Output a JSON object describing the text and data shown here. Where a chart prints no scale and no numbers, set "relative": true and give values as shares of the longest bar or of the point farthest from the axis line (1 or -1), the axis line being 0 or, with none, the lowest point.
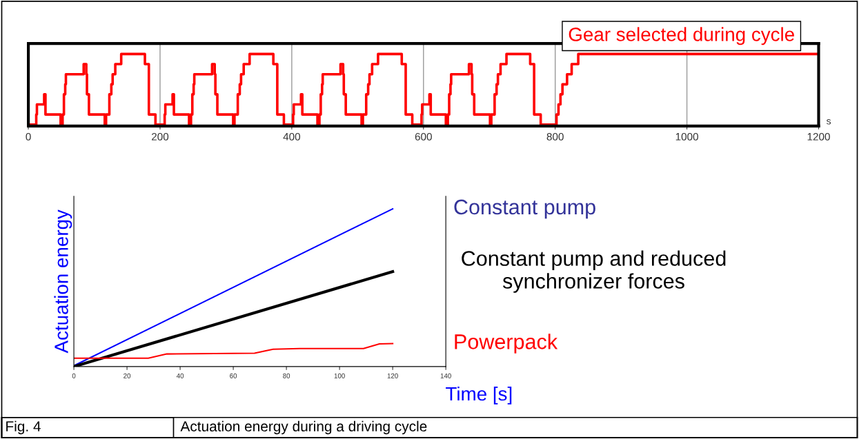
{
  "chart_data": [
    {
      "type": "step",
      "title": "Gear selected during cycle",
      "xlabel": "s",
      "relative": true,
      "xlim": [
        0,
        1200
      ],
      "xticks": [
        0,
        200,
        400,
        600,
        800,
        1000,
        1200
      ],
      "grid": "x",
      "legend": false,
      "tick_labels": "x",
      "marker": "none",
      "line_style": "solid",
      "series": [
        {
          "color": "#ff0000",
          "x": [
            0,
            12,
            13,
            24,
            26,
            49,
            52,
            54,
            56,
            57,
            84,
            88,
            89,
            92,
            116,
            118,
            123,
            126,
            128,
            132,
            141,
            177,
            183,
            193,
            207,
            208,
            219,
            221,
            244,
            247,
            249,
            251,
            252,
            279,
            283,
            284,
            287,
            311,
            313,
            318,
            321,
            323,
            327,
            336,
            372,
            378,
            388,
            402,
            403,
            414,
            416,
            439,
            442,
            444,
            446,
            447,
            474,
            478,
            479,
            482,
            506,
            508,
            513,
            516,
            518,
            522,
            531,
            567,
            573,
            583,
            597,
            598,
            609,
            611,
            634,
            637,
            639,
            641,
            642,
            669,
            673,
            674,
            677,
            701,
            703,
            708,
            711,
            713,
            717,
            726,
            762,
            768,
            778,
            802,
            805,
            808,
            811,
            818,
            825,
            835,
            1200
          ],
          "values": [
            0,
            0.143,
            0.286,
            0.429,
            0.143,
            0,
            0.143,
            0.429,
            0.571,
            0.714,
            0.857,
            0.714,
            0.429,
            0.143,
            0,
            0.143,
            0.429,
            0.571,
            0.714,
            0.857,
            1,
            0.857,
            0.143,
            0,
            0.143,
            0.286,
            0.429,
            0.143,
            0,
            0.143,
            0.429,
            0.571,
            0.714,
            0.857,
            0.714,
            0.429,
            0.143,
            0,
            0.143,
            0.429,
            0.571,
            0.714,
            0.857,
            1,
            0.857,
            0.143,
            0,
            0.143,
            0.286,
            0.429,
            0.143,
            0,
            0.143,
            0.429,
            0.571,
            0.714,
            0.857,
            0.714,
            0.429,
            0.143,
            0,
            0.143,
            0.429,
            0.571,
            0.714,
            0.857,
            1,
            0.857,
            0.143,
            0,
            0.143,
            0.286,
            0.429,
            0.143,
            0,
            0.143,
            0.429,
            0.571,
            0.714,
            0.857,
            0.714,
            0.429,
            0.143,
            0,
            0.143,
            0.429,
            0.571,
            0.714,
            0.857,
            1,
            0.857,
            0.143,
            0,
            0.143,
            0.286,
            0.429,
            0.571,
            0.714,
            0.857,
            1,
            1
          ]
        }
      ]
    },
    {
      "type": "line",
      "xlabel": "Time [s]",
      "ylabel": "Actuation energy",
      "relative": true,
      "xlim": [
        0,
        140
      ],
      "xticks": [
        0,
        20,
        40,
        60,
        80,
        100,
        120,
        140
      ],
      "grid": false,
      "legend": false,
      "tick_labels": "x",
      "marker": "none",
      "line_style": "solid",
      "annotations": [
        "Fig. 4",
        "Actuation energy during a driving cycle"
      ],
      "series": [
        {
          "name": "Constant pump",
          "color": "#0000ff",
          "x": [
            0,
            120
          ],
          "values": [
            0.005,
            1
          ]
        },
        {
          "name": "Constant pump and reduced\nsynchronizer forces",
          "color": "#000000",
          "x": [
            0,
            120
          ],
          "values": [
            0,
            0.602
          ]
        },
        {
          "name": "Powerpack",
          "color": "#ff0000",
          "x": [
            0,
            28,
            35,
            68,
            75,
            85,
            109,
            115,
            120
          ],
          "values": [
            0.053,
            0.053,
            0.08,
            0.085,
            0.11,
            0.114,
            0.114,
            0.144,
            0.146
          ]
        }
      ]
    }
  ]
}
